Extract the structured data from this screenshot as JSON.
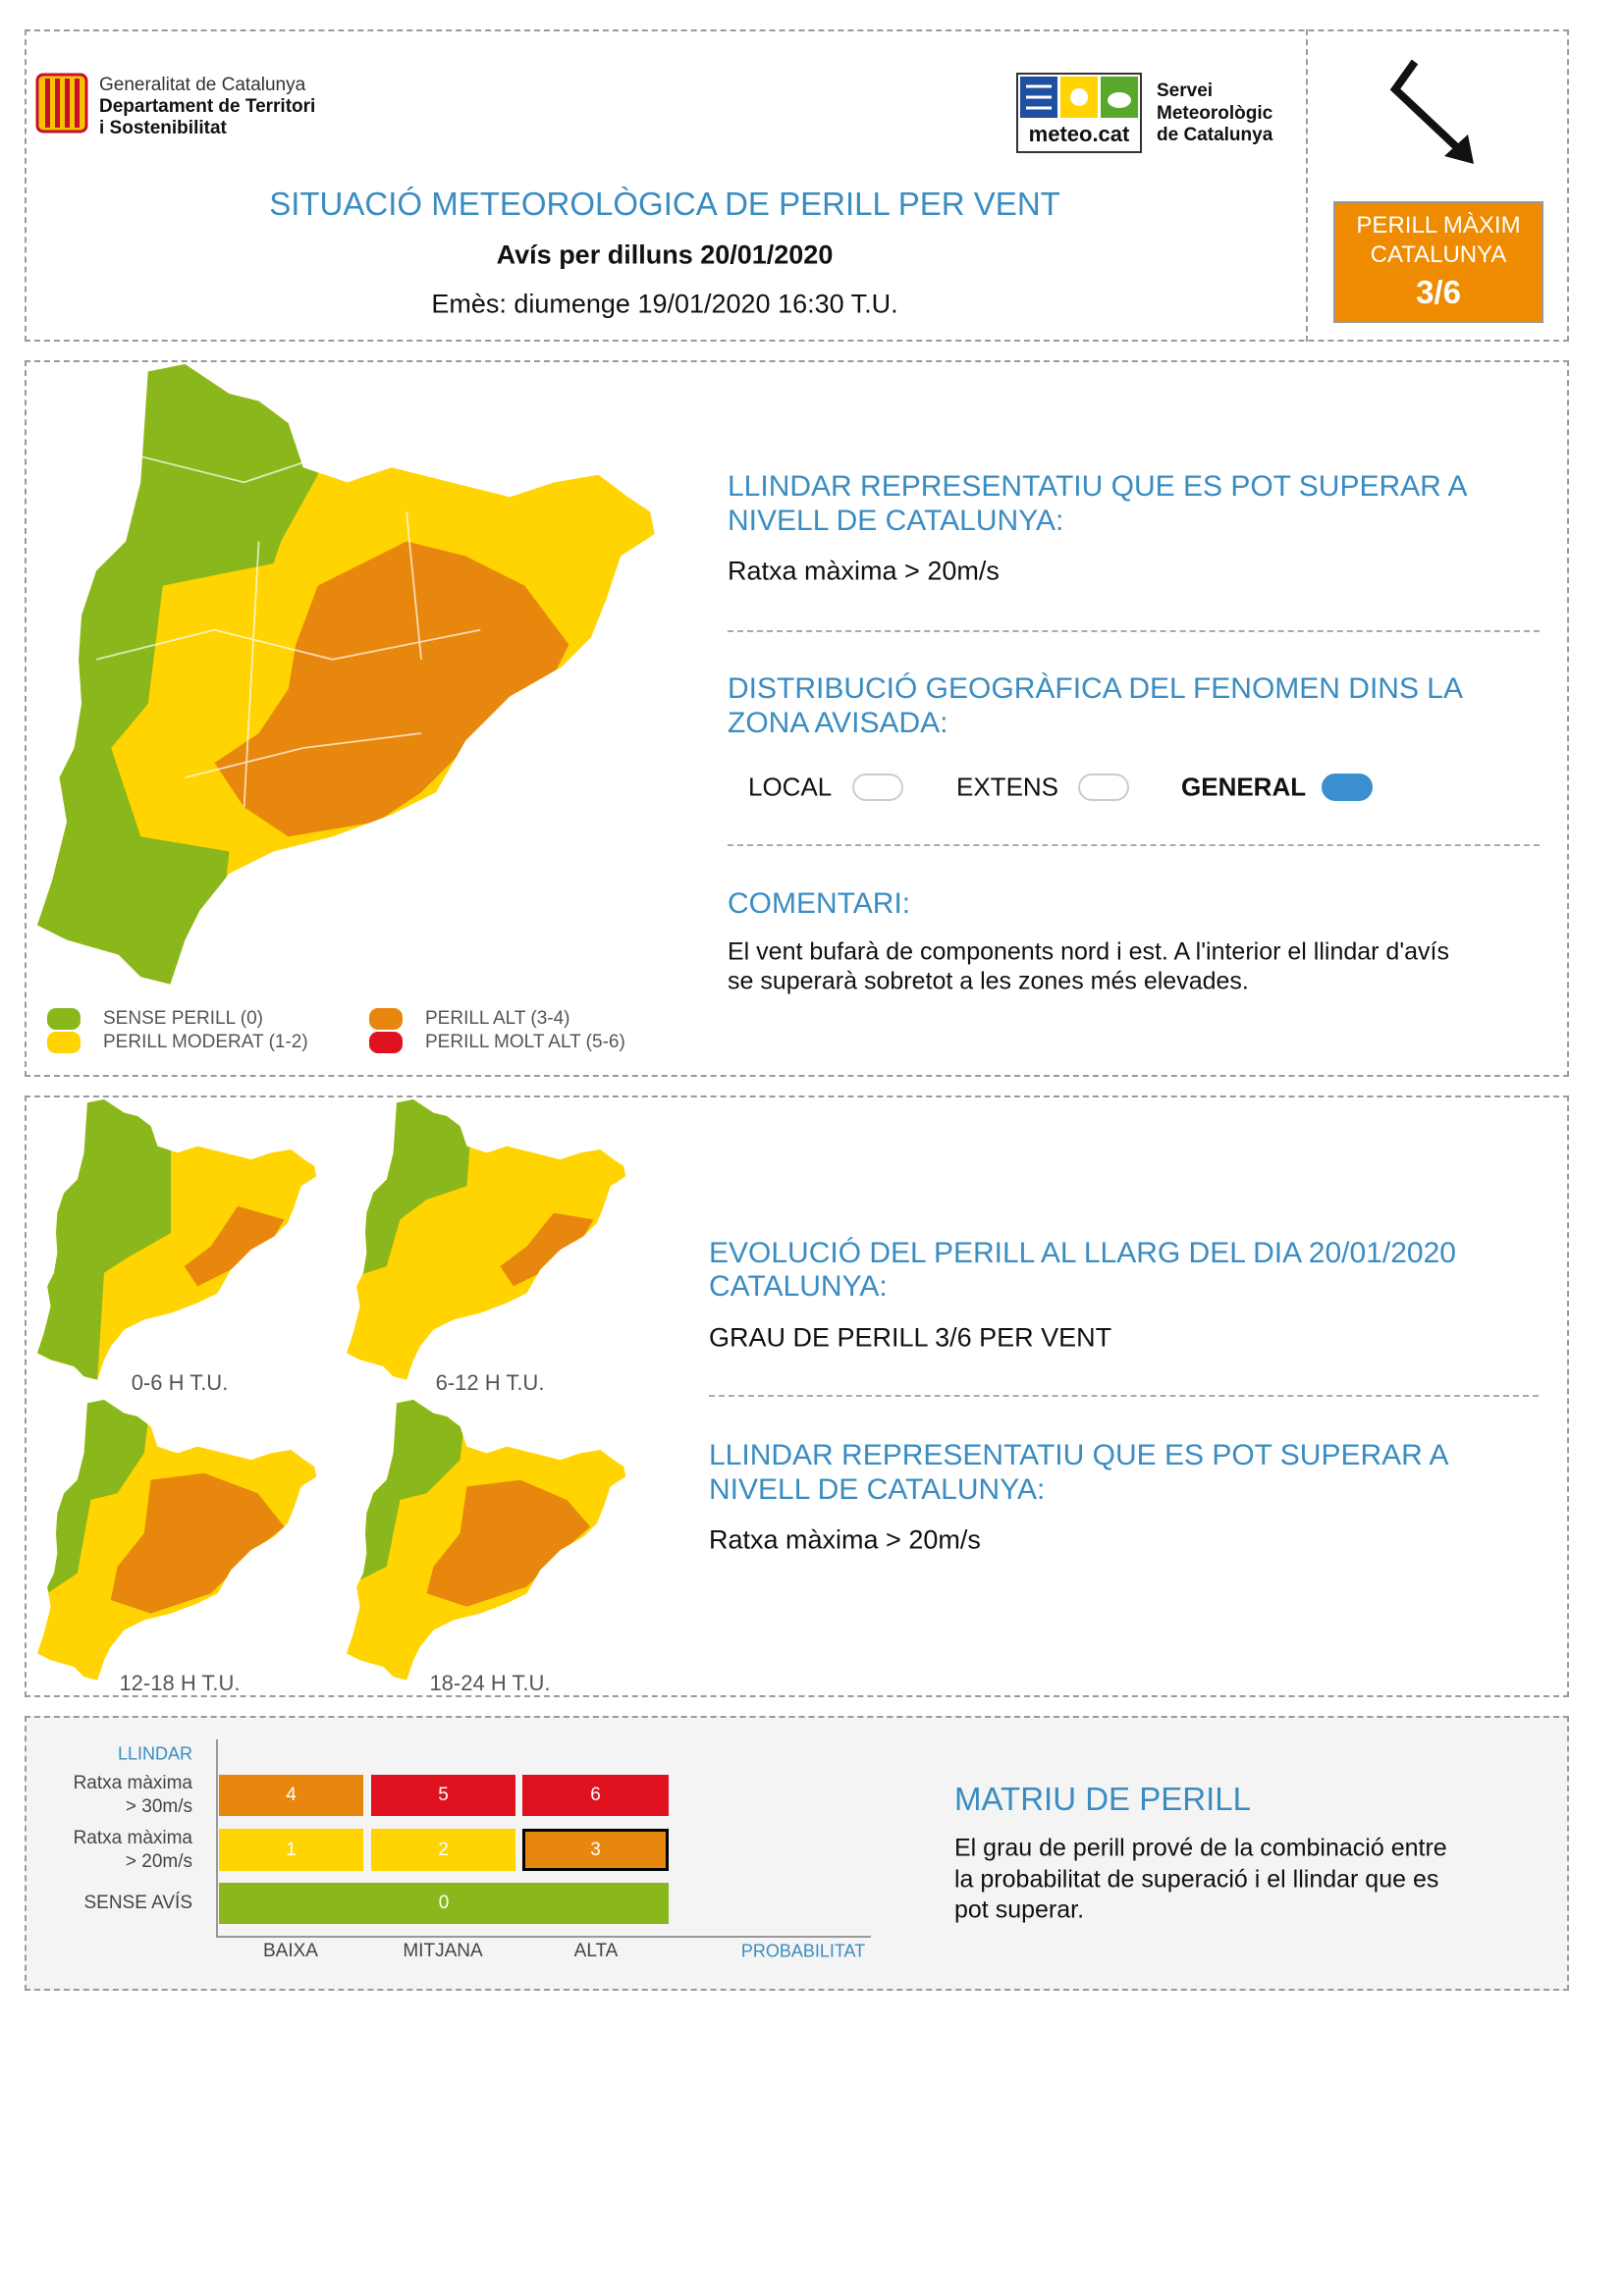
{
  "header": {
    "org_logo": [
      "Generalitat de Catalunya",
      "Departament de Territori",
      "i Sostenibilitat"
    ],
    "meteo_logo": "meteo.cat",
    "service": [
      "Servei",
      "Meteorològic",
      "de Catalunya"
    ],
    "title": "SITUACIÓ METEOROLÒGICA DE PERILL PER VENT",
    "subtitle": "Avís per dilluns 20/01/2020",
    "issued": "Emès: diumenge 19/01/2020 16:30 T.U.",
    "max_danger": {
      "label": [
        "PERILL MÀXIM",
        "CATALUNYA"
      ],
      "value": "3/6"
    }
  },
  "map_section": {
    "legend": [
      {
        "label": "SENSE PERILL (0)",
        "color": "#8ab81c"
      },
      {
        "label": "PERILL MODERAT (1-2)",
        "color": "#ffd400"
      },
      {
        "label": "PERILL ALT (3-4)",
        "color": "#e8870e"
      },
      {
        "label": "PERILL MOLT ALT (5-6)",
        "color": "#e0121f"
      }
    ],
    "threshold": {
      "heading": [
        "LLINDAR REPRESENTATIU QUE ES POT SUPERAR A",
        "NIVELL DE CATALUNYA:"
      ],
      "text": "Ratxa màxima > 20m/s"
    },
    "distribution": {
      "heading": [
        "DISTRIBUCIÓ GEOGRÀFICA DEL FENOMEN DINS LA",
        "ZONA AVISADA:"
      ],
      "options": [
        "LOCAL",
        "EXTENS",
        "GENERAL"
      ],
      "selected": 2
    },
    "comment": {
      "heading": "COMENTARI:",
      "text": [
        "El vent bufarà de components nord i est. A l'interior el llindar d'avís",
        "se superarà sobretot a les zones més elevades."
      ]
    }
  },
  "evolution": {
    "periods": [
      "0-6 H T.U.",
      "6-12 H T.U.",
      "12-18 H T.U.",
      "18-24 H T.U."
    ],
    "heading": [
      "EVOLUCIÓ DEL PERILL AL LLARG DEL DIA 20/01/2020",
      "CATALUNYA:"
    ],
    "grade": "GRAU DE PERILL 3/6 PER VENT",
    "threshold": {
      "heading": [
        "LLINDAR REPRESENTATIU QUE ES POT SUPERAR A",
        "NIVELL DE CATALUNYA:"
      ],
      "text": "Ratxa màxima > 20m/s"
    }
  },
  "matrix": {
    "axis_title": "LLINDAR",
    "rows": [
      {
        "label": [
          "Ratxa màxima",
          "> 30m/s"
        ],
        "cells": [
          4,
          5,
          6
        ]
      },
      {
        "label": [
          "Ratxa màxima",
          "> 20m/s"
        ],
        "cells": [
          1,
          2,
          3
        ]
      },
      {
        "label": [
          "SENSE AVÍS"
        ],
        "cells": [
          0
        ]
      }
    ],
    "columns": [
      "BAIXA",
      "MITJANA",
      "ALTA"
    ],
    "x_axis_title": "PROBABILITAT",
    "highlighted": [
      1,
      2
    ],
    "title": "MATRIU DE PERILL",
    "text": [
      "El grau de perill prové de la combinació entre",
      "la probabilitat de superació i el llindar que es",
      "pot superar."
    ]
  }
}
